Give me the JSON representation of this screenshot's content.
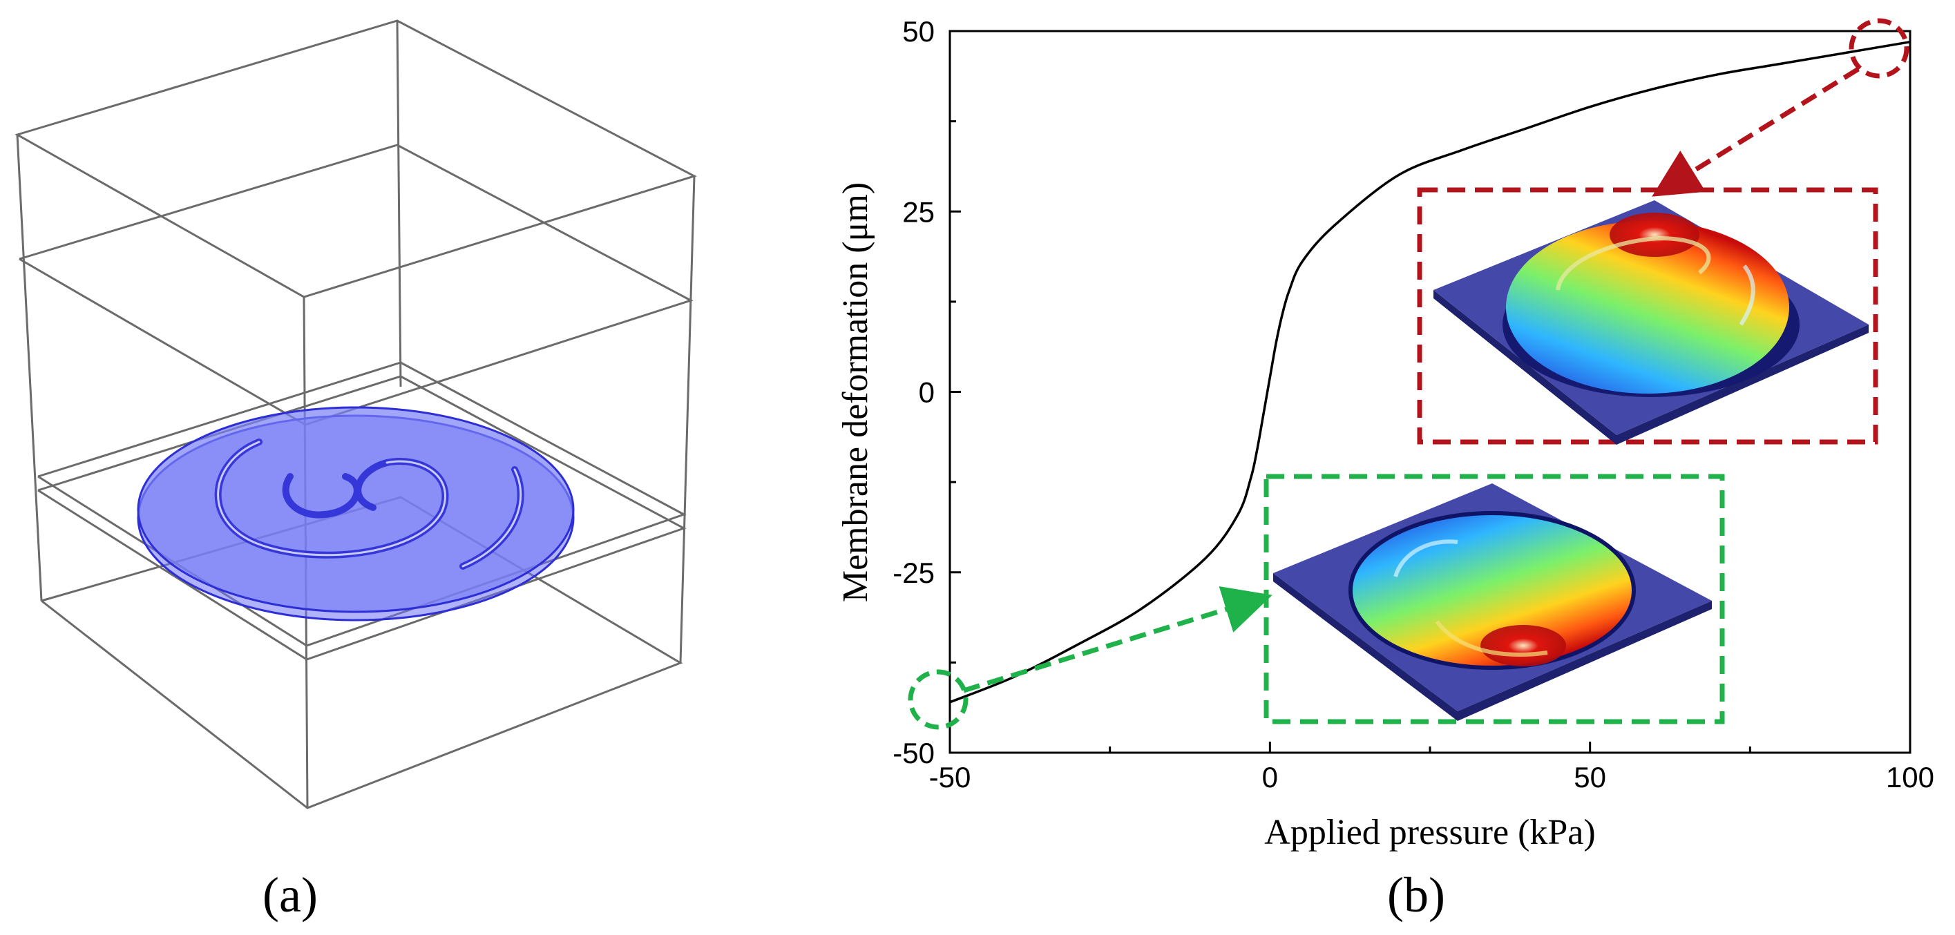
{
  "panels": {
    "a": {
      "label": "(a)"
    },
    "b": {
      "label": "(b)"
    }
  },
  "colors": {
    "membrane_fill": "#6f74f5",
    "membrane_edge": "#2d2ed6",
    "box_line": "#6b6b6b",
    "curve": "#000000",
    "callout_top": "#b3141b",
    "callout_bottom": "#1fb24a",
    "inset_base": "#3b3fa0"
  },
  "chart_data": {
    "type": "line",
    "title": "",
    "xlabel": "Applied pressure (kPa)",
    "ylabel": "Membrane deformation (μm)",
    "xlim": [
      -50,
      100
    ],
    "ylim": [
      -50,
      50
    ],
    "xticks": [
      -50,
      0,
      50,
      100
    ],
    "xtick_labels": [
      "-50",
      "0",
      "50",
      "100"
    ],
    "yticks": [
      -50,
      -25,
      0,
      25,
      50
    ],
    "ytick_labels": [
      "-50",
      "-25",
      "0",
      "25",
      "50"
    ],
    "series": [
      {
        "name": "Membrane deformation",
        "x": [
          -50,
          -40,
          -30,
          -20,
          -10,
          -5,
          -3,
          -2,
          -1,
          0,
          1,
          2,
          3,
          5,
          10,
          20,
          30,
          40,
          50,
          60,
          70,
          80,
          90,
          100
        ],
        "y": [
          -43,
          -39.5,
          -35,
          -30,
          -23,
          -17,
          -12,
          -8,
          -3,
          2,
          7,
          11,
          14,
          18,
          23,
          30,
          33.5,
          36.5,
          39.5,
          42,
          44,
          45.5,
          47,
          48.5
        ]
      }
    ],
    "annotations": [
      {
        "point": [
          100,
          48.5
        ],
        "callout": "top",
        "inset": "upward-deformed membrane (red peak)"
      },
      {
        "point": [
          -50,
          -43
        ],
        "callout": "bottom",
        "inset": "downward-deformed membrane (red trough)"
      }
    ]
  }
}
